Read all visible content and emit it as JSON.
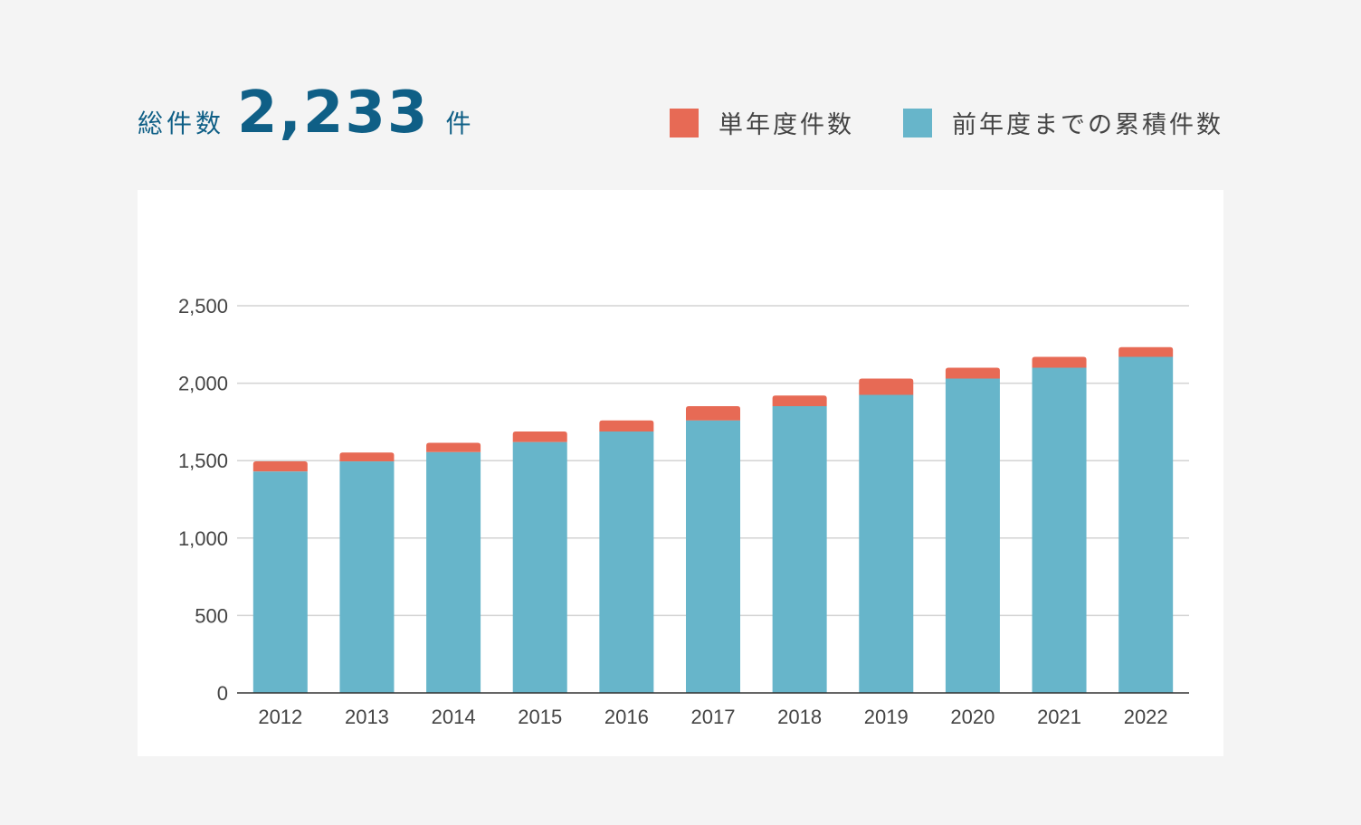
{
  "summary": {
    "label": "総件数",
    "total": "2,233",
    "unit": "件"
  },
  "legend": [
    {
      "label": "単年度件数",
      "color": "#e76a55"
    },
    {
      "label": "前年度までの累積件数",
      "color": "#67b5ca"
    }
  ],
  "chart_data": {
    "type": "bar",
    "stacked": true,
    "categories": [
      "2012",
      "2013",
      "2014",
      "2015",
      "2016",
      "2017",
      "2018",
      "2019",
      "2020",
      "2021",
      "2022"
    ],
    "series": [
      {
        "name": "前年度までの累積件数",
        "color": "#67b5ca",
        "values": [
          1430,
          1495,
          1555,
          1620,
          1688,
          1760,
          1852,
          1925,
          2030,
          2100,
          2170
        ]
      },
      {
        "name": "単年度件数",
        "color": "#e76a55",
        "values": [
          65,
          57,
          60,
          68,
          72,
          92,
          68,
          105,
          70,
          70,
          63
        ]
      }
    ],
    "ylim": [
      0,
      2500
    ],
    "yticks": [
      0,
      500,
      1000,
      1500,
      2000,
      2500
    ],
    "ytick_labels": [
      "0",
      "500",
      "1,000",
      "1,500",
      "2,000",
      "2,500"
    ],
    "grid": true,
    "legend_position": "top-right"
  }
}
